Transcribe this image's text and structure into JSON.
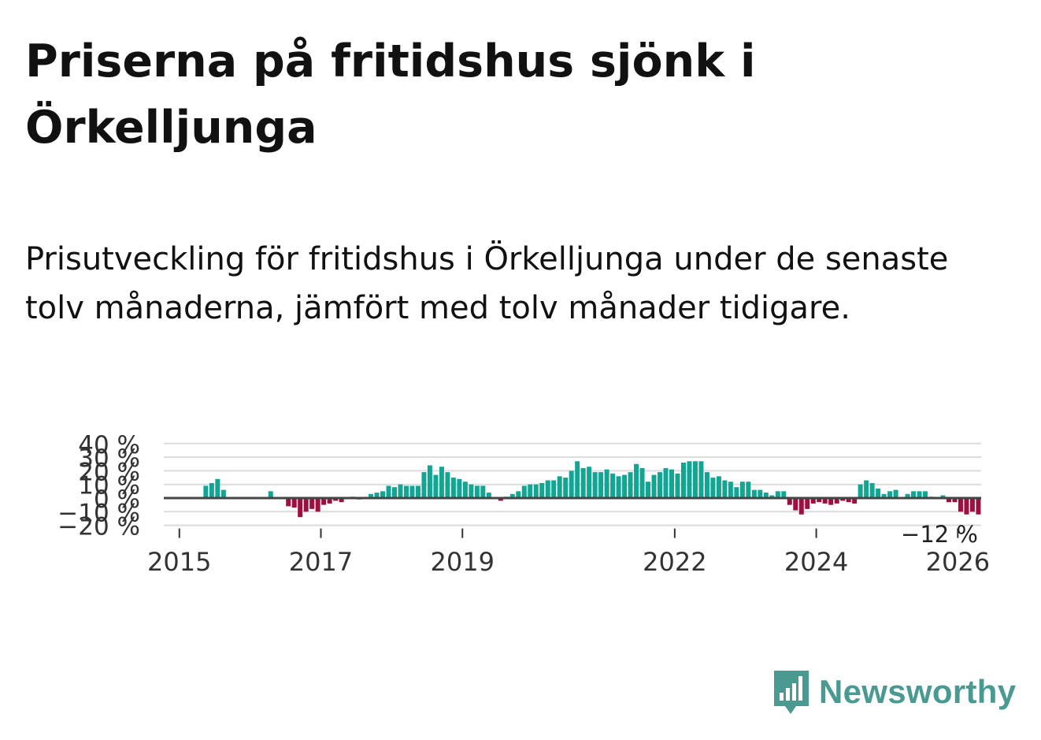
{
  "header": {
    "title": "Priserna på fritidshus sjönk i Örkelljunga",
    "subtitle": "Prisutveckling för fritidshus i Örkelljunga under de senaste tolv månaderna, jämfört med tolv månader tidigare."
  },
  "brand": {
    "name": "Newsworthy",
    "icon": "bar-chart-speech-bubble-icon",
    "color": "#4a9a92"
  },
  "colors": {
    "positive": "#12a594",
    "negative": "#9c0f3f",
    "zero_line": "#444444",
    "grid": "#dcdcdc"
  },
  "chart_data": {
    "type": "bar",
    "y_tick_labels": [
      "40 %",
      "30 %",
      "20 %",
      "10 %",
      "0 %",
      "−10 %",
      "−20 %"
    ],
    "y_ticks": [
      40,
      30,
      20,
      10,
      0,
      -10,
      -20
    ],
    "ylim": [
      -20,
      40
    ],
    "x_tick_labels": [
      "2015",
      "2017",
      "2019",
      "2022",
      "2024",
      "2026"
    ],
    "x_ticks": [
      2015.0,
      2017.0,
      2019.0,
      2022.0,
      2024.0,
      2026.0
    ],
    "xlim": [
      2014.78,
      2026.33
    ],
    "grid": true,
    "annotation": "−12 %",
    "values": [
      null,
      null,
      null,
      null,
      9,
      11,
      14,
      6,
      null,
      null,
      null,
      null,
      null,
      null,
      null,
      5,
      null,
      null,
      -6,
      -7,
      -14,
      -10,
      -8,
      -10,
      -5,
      -4,
      -2,
      -3,
      null,
      1,
      -1,
      null,
      3,
      4,
      5,
      9,
      8,
      10,
      9,
      9,
      9,
      19,
      24,
      17,
      23,
      19,
      15,
      14,
      12,
      10,
      9,
      9,
      4,
      null,
      -2,
      1,
      3,
      5,
      9,
      10,
      10,
      11,
      13,
      13,
      16,
      15,
      20,
      27,
      22,
      23,
      19,
      19,
      21,
      18,
      16,
      17,
      19,
      25,
      22,
      12,
      17,
      19,
      22,
      21,
      18,
      26,
      27,
      27,
      27,
      19,
      15,
      16,
      13,
      12,
      8,
      12,
      12,
      6,
      6,
      4,
      2,
      5,
      5,
      -5,
      -9,
      -12,
      -8,
      -4,
      -3,
      -4,
      -5,
      -4,
      -2,
      -3,
      -4,
      10,
      13,
      11,
      7,
      3,
      5,
      6,
      null,
      3,
      5,
      5,
      5,
      1,
      null,
      2,
      -3,
      -3,
      -10,
      -12,
      -10,
      -12
    ]
  }
}
